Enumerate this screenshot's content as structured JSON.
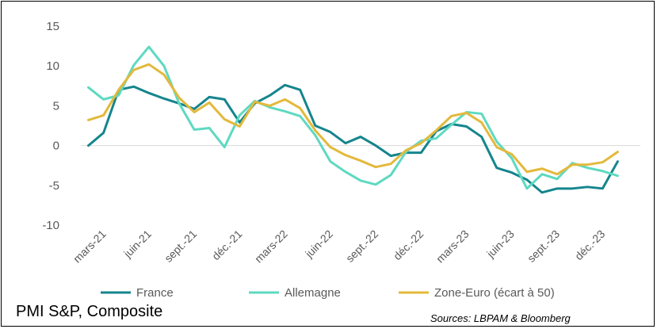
{
  "chart_data": {
    "type": "line",
    "title": "PMI S&P, Composite",
    "source": "Sources: LBPAM & Bloomberg",
    "ylim": [
      -10,
      15
    ],
    "yticks": [
      15,
      10,
      5,
      0,
      -5,
      -10
    ],
    "grid": false,
    "legend_position": "bottom",
    "x": [
      "févr.-21",
      "mars-21",
      "avr.-21",
      "mai-21",
      "juin-21",
      "juil.-21",
      "août-21",
      "sept.-21",
      "oct.-21",
      "nov.-21",
      "déc.-21",
      "janv.-22",
      "févr.-22",
      "mars-22",
      "avr.-22",
      "mai-22",
      "juin-22",
      "juil.-22",
      "août-22",
      "sept.-22",
      "oct.-22",
      "nov.-22",
      "déc.-22",
      "janv.-23",
      "févr.-23",
      "mars-23",
      "avr.-23",
      "mai-23",
      "juin-23",
      "juil.-23",
      "août-23",
      "sept.-23",
      "oct.-23",
      "nov.-23",
      "déc.-23",
      "janv.-24",
      "févr.-24"
    ],
    "xtick_labels": [
      "mars-21",
      "juin-21",
      "sept.-21",
      "déc.-21",
      "mars-22",
      "juin-22",
      "sept.-22",
      "déc.-22",
      "mars-23",
      "juin-23",
      "sept.-23",
      "déc.-23"
    ],
    "series": [
      {
        "name": "France",
        "color": "#15858d",
        "values": [
          0.0,
          1.6,
          7.0,
          7.4,
          6.6,
          5.9,
          5.3,
          4.6,
          6.1,
          5.8,
          2.9,
          5.3,
          6.3,
          7.6,
          7.0,
          2.5,
          1.7,
          0.3,
          1.1,
          0.0,
          -1.3,
          -0.9,
          -0.9,
          1.8,
          2.7,
          2.4,
          1.1,
          -2.8,
          -3.4,
          -4.3,
          -5.9,
          -5.4,
          -5.4,
          -5.2,
          -5.4,
          -2.0,
          null
        ]
      },
      {
        "name": "Allemagne",
        "color": "#5ed9c1",
        "values": [
          7.3,
          5.8,
          6.3,
          10.1,
          12.4,
          10.0,
          5.3,
          2.0,
          2.2,
          -0.2,
          3.8,
          5.6,
          4.8,
          4.3,
          3.7,
          1.3,
          -2.0,
          -3.3,
          -4.4,
          -4.9,
          -3.7,
          -0.8,
          0.6,
          0.9,
          2.6,
          4.2,
          4.0,
          0.5,
          -1.6,
          -5.4,
          -3.6,
          -4.2,
          -2.2,
          -2.8,
          -3.2,
          -3.8,
          null
        ]
      },
      {
        "name": "Zone-Euro (écart à 50)",
        "color": "#e3b93b",
        "values": [
          3.2,
          3.8,
          7.0,
          9.5,
          10.2,
          8.9,
          6.0,
          4.2,
          5.4,
          3.3,
          2.4,
          5.5,
          5.0,
          5.8,
          4.7,
          1.9,
          -0.2,
          -1.2,
          -1.9,
          -2.7,
          -2.3,
          -0.6,
          0.3,
          1.9,
          3.7,
          4.1,
          2.9,
          -0.2,
          -1.1,
          -3.3,
          -2.9,
          -3.6,
          -2.4,
          -2.4,
          -2.1,
          -0.8,
          null
        ]
      }
    ]
  }
}
